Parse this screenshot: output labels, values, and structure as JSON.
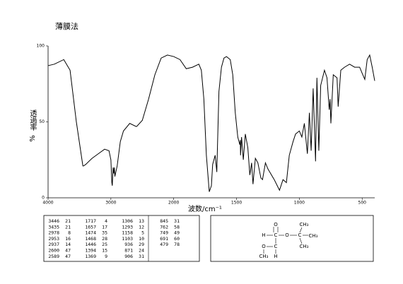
{
  "chart_data": {
    "type": "line",
    "title": "薄膜法",
    "xlabel": "波数/cm⁻¹",
    "ylabel": "透過率",
    "ylabel_unit": "%",
    "xlim": [
      4000,
      400
    ],
    "xscale": "piecewise",
    "xscale_break": 2000,
    "xticks": [
      4000,
      3000,
      2000,
      1500,
      1000,
      500
    ],
    "ylim": [
      0,
      100
    ],
    "yticks": [
      0,
      50,
      100
    ],
    "color": "#000000",
    "x": [
      4000,
      3900,
      3750,
      3650,
      3550,
      3446,
      3435,
      3400,
      3300,
      3200,
      3100,
      3030,
      3000,
      2985,
      2978,
      2965,
      2953,
      2945,
      2937,
      2900,
      2850,
      2800,
      2700,
      2600,
      2589,
      2500,
      2400,
      2300,
      2200,
      2100,
      2000,
      1950,
      1900,
      1850,
      1800,
      1780,
      1760,
      1740,
      1717,
      1700,
      1690,
      1670,
      1657,
      1640,
      1620,
      1600,
      1580,
      1550,
      1530,
      1510,
      1490,
      1474,
      1470,
      1468,
      1460,
      1446,
      1430,
      1410,
      1394,
      1380,
      1369,
      1350,
      1330,
      1306,
      1293,
      1270,
      1250,
      1200,
      1158,
      1130,
      1103,
      1080,
      1050,
      1030,
      1000,
      980,
      960,
      936,
      920,
      906,
      890,
      871,
      860,
      845,
      830,
      800,
      780,
      762,
      755,
      749,
      730,
      700,
      691,
      670,
      640,
      600,
      560,
      520,
      500,
      479,
      460,
      440,
      420,
      400
    ],
    "values": [
      87,
      88,
      91,
      84,
      50,
      21,
      21,
      22,
      26,
      29,
      32,
      31,
      25,
      10,
      8,
      20,
      16,
      20,
      14,
      21,
      37,
      44,
      49,
      47,
      47,
      51,
      65,
      81,
      92,
      94,
      93,
      91,
      85,
      86,
      88,
      84,
      65,
      28,
      4,
      8,
      22,
      28,
      17,
      70,
      86,
      92,
      93,
      91,
      81,
      56,
      40,
      35,
      38,
      28,
      40,
      25,
      42,
      33,
      15,
      23,
      9,
      26,
      23,
      13,
      12,
      23,
      19,
      12,
      5,
      12,
      10,
      28,
      37,
      42,
      44,
      40,
      49,
      29,
      56,
      31,
      72,
      24,
      79,
      31,
      74,
      84,
      79,
      58,
      65,
      49,
      81,
      79,
      60,
      84,
      86,
      88,
      86,
      86,
      82,
      78,
      91,
      94,
      86,
      77
    ],
    "peak_table": [
      [
        3446,
        21
      ],
      [
        3435,
        21
      ],
      [
        2978,
        8
      ],
      [
        2953,
        16
      ],
      [
        2937,
        14
      ],
      [
        2600,
        47
      ],
      [
        2589,
        47
      ],
      [
        1717,
        4
      ],
      [
        1657,
        17
      ],
      [
        1474,
        35
      ],
      [
        1468,
        28
      ],
      [
        1446,
        25
      ],
      [
        1394,
        15
      ],
      [
        1369,
        9
      ],
      [
        1306,
        13
      ],
      [
        1293,
        12
      ],
      [
        1158,
        5
      ],
      [
        1103,
        10
      ],
      [
        936,
        29
      ],
      [
        871,
        24
      ],
      [
        906,
        31
      ],
      [
        845,
        31
      ],
      [
        762,
        58
      ],
      [
        749,
        49
      ],
      [
        691,
        60
      ],
      [
        479,
        78
      ]
    ],
    "structure": {
      "atoms": [
        "O",
        "H",
        "C",
        "O",
        "C",
        "CH₃",
        "CH₃",
        "CH₃",
        "O",
        "C",
        "CH₃",
        "H"
      ]
    }
  }
}
